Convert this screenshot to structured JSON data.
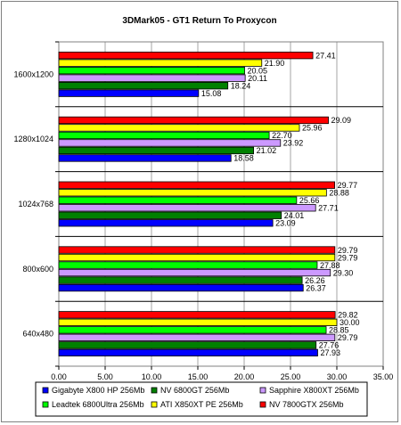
{
  "chart_data": {
    "type": "bar",
    "orientation": "horizontal",
    "title": "3DMark05 - GT1 Return To Proxycon",
    "xlabel": "",
    "ylabel": "",
    "xlim": [
      0,
      35
    ],
    "xticks": [
      "0.00",
      "5.00",
      "10.00",
      "15.00",
      "20.00",
      "25.00",
      "30.00",
      "35.00"
    ],
    "grid": "vertical",
    "legend_position": "bottom",
    "categories": [
      "1600x1200",
      "1280x1024",
      "1024x768",
      "800x600",
      "640x480"
    ],
    "series": [
      {
        "name": "NV 7800GTX 256Mb",
        "color": "#ff0000",
        "values": [
          27.41,
          29.09,
          29.77,
          29.79,
          29.82
        ]
      },
      {
        "name": "ATI X850XT PE 256Mb",
        "color": "#ffff00",
        "values": [
          21.9,
          25.96,
          28.88,
          29.79,
          30.0
        ]
      },
      {
        "name": "Leadtek 6800Ultra 256Mb",
        "color": "#00ff00",
        "values": [
          20.05,
          22.7,
          25.66,
          27.88,
          28.85
        ]
      },
      {
        "name": "Sapphire X800XT 256Mb",
        "color": "#cc99ff",
        "values": [
          20.11,
          23.92,
          27.71,
          29.3,
          29.79
        ]
      },
      {
        "name": "NV 6800GT 256Mb",
        "color": "#008000",
        "values": [
          18.24,
          21.02,
          24.01,
          26.26,
          27.76
        ]
      },
      {
        "name": "Gigabyte X800 HP 256Mb",
        "color": "#0000ff",
        "values": [
          15.08,
          18.58,
          23.09,
          26.37,
          27.93
        ]
      }
    ],
    "value_labels": [
      [
        "27.41",
        "21.90",
        "20.05",
        "20.11",
        "18.24",
        "15.08"
      ],
      [
        "29.09",
        "25.96",
        "22.70",
        "23.92",
        "21.02",
        "18.58"
      ],
      [
        "29.77",
        "28.88",
        "25.66",
        "27.71",
        "24.01",
        "23.09"
      ],
      [
        "29.79",
        "29.79",
        "27.88",
        "29.30",
        "26.26",
        "26.37"
      ],
      [
        "29.82",
        "30.00",
        "28.85",
        "29.79",
        "27.76",
        "27.93"
      ]
    ],
    "legend_order": [
      5,
      4,
      3,
      2,
      1,
      0
    ]
  }
}
